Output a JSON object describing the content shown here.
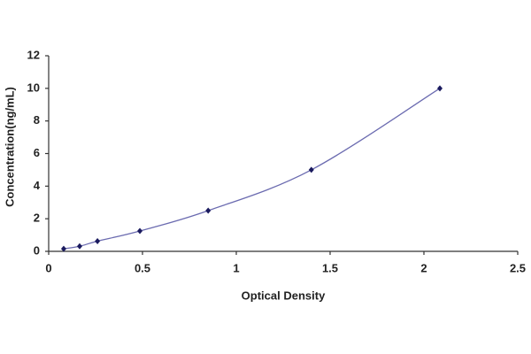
{
  "chart_data": {
    "type": "scatter",
    "x_label": "Optical Density",
    "y_label": "Concentration(ng/mL)",
    "series": [
      {
        "color": "#1a1a5e",
        "line_color": "#6b6bb0",
        "x": [
          0.08,
          0.165,
          0.26,
          0.486,
          0.85,
          1.4,
          2.085
        ],
        "values": [
          0.156,
          0.312,
          0.625,
          1.25,
          2.5,
          5,
          10
        ]
      }
    ],
    "xlim": [
      0,
      2.5
    ],
    "xticks": [
      0,
      0.5,
      1,
      1.5,
      2,
      2.5
    ],
    "ylim": [
      0,
      12
    ],
    "yticks": [
      0,
      2,
      4,
      6,
      8,
      10,
      12
    ],
    "grid": false,
    "smooth": true
  }
}
